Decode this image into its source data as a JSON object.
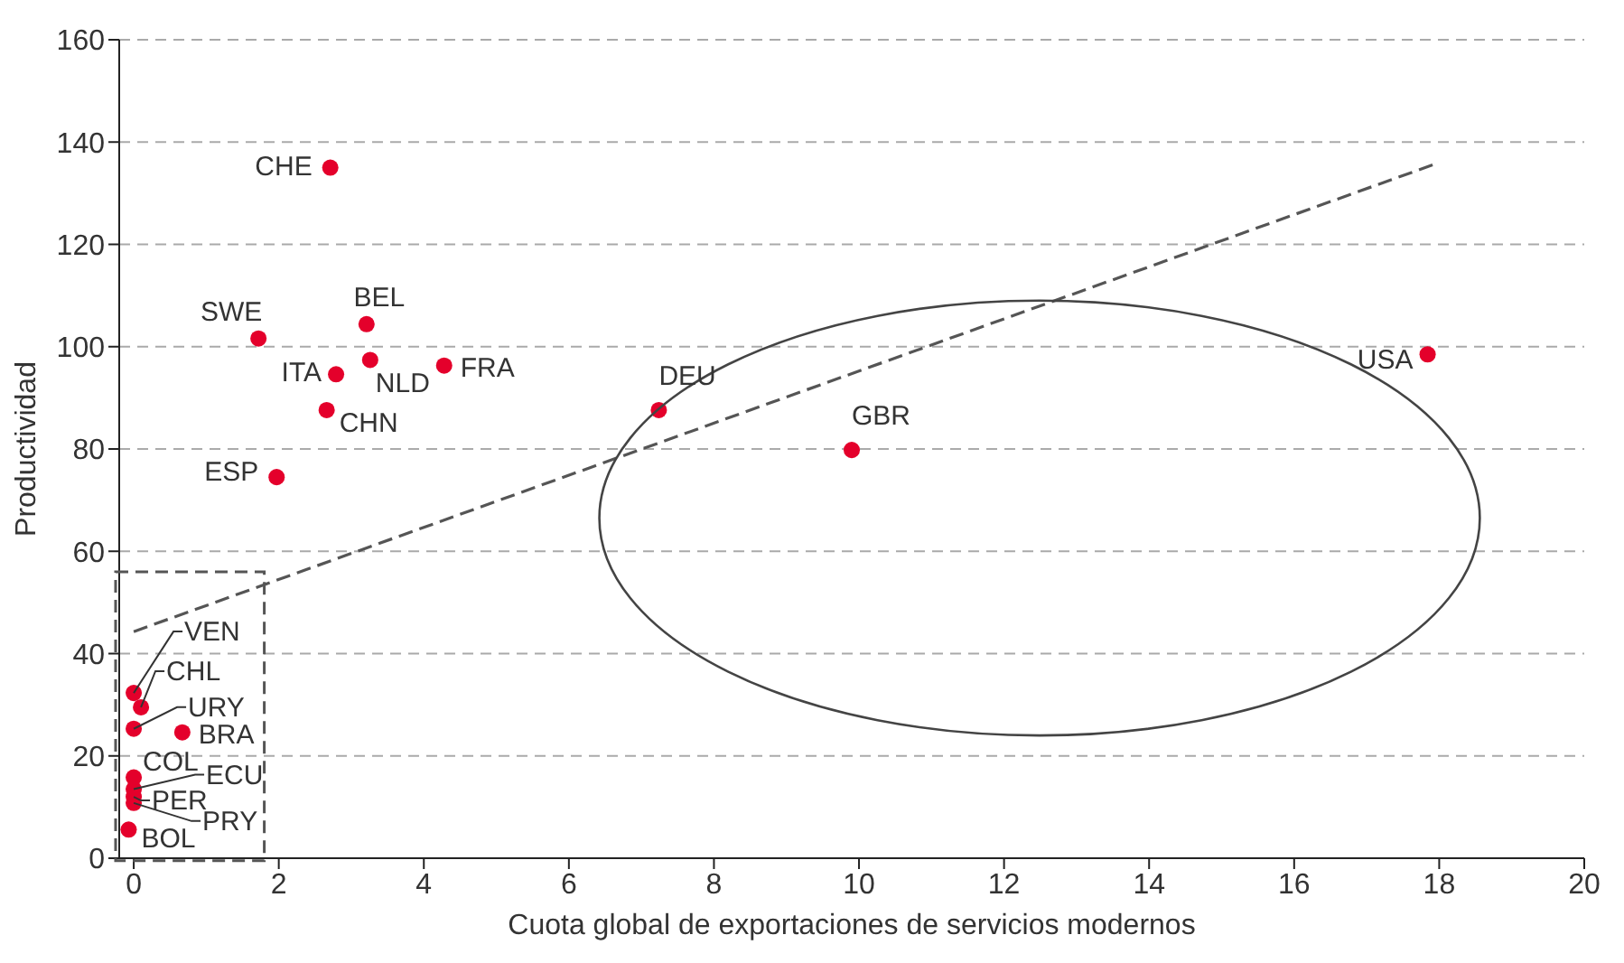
{
  "chart_data": {
    "type": "scatter",
    "xlabel": "Cuota global de exportaciones de servicios modernos",
    "ylabel": "Productividad",
    "xlim": [
      -0.2,
      20
    ],
    "xticks": [
      0,
      2,
      4,
      6,
      8,
      10,
      12,
      14,
      16,
      18,
      20
    ],
    "ylim": [
      0,
      160
    ],
    "yticks": [
      0,
      20,
      40,
      60,
      80,
      100,
      120,
      140,
      160
    ],
    "grid": "y",
    "series": [
      {
        "color": "#e4002b",
        "marker": "circle",
        "x": [
          2.71,
          1.72,
          3.21,
          2.79,
          3.26,
          4.28,
          2.66,
          1.97,
          7.24,
          9.9,
          17.84,
          0,
          0.1,
          0,
          0.67,
          0,
          0,
          0,
          0,
          -0.07
        ],
        "values": [
          135,
          101.6,
          104.4,
          94.6,
          97.4,
          96.3,
          87.6,
          74.5,
          87.6,
          79.8,
          98.5,
          32.3,
          29.5,
          25.3,
          24.6,
          15.8,
          13.5,
          12,
          10.8,
          5.6
        ]
      },
      {
        "type": "line",
        "color": "#555555",
        "line_style": "dashed",
        "marker": "none",
        "x": [
          0,
          18
        ],
        "values": [
          44.3,
          136
        ]
      }
    ],
    "annotations": [
      {
        "text": "CHE",
        "x": 2.71,
        "y": 135
      },
      {
        "text": "SWE",
        "x": 1.72,
        "y": 101.6
      },
      {
        "text": "BEL",
        "x": 3.21,
        "y": 104.4
      },
      {
        "text": "ITA",
        "x": 2.79,
        "y": 94.6
      },
      {
        "text": "NLD",
        "x": 3.26,
        "y": 97.4
      },
      {
        "text": "FRA",
        "x": 4.28,
        "y": 96.3
      },
      {
        "text": "CHN",
        "x": 2.66,
        "y": 87.6
      },
      {
        "text": "ESP",
        "x": 1.97,
        "y": 74.5
      },
      {
        "text": "DEU",
        "x": 7.24,
        "y": 87.6
      },
      {
        "text": "GBR",
        "x": 9.9,
        "y": 79.8
      },
      {
        "text": "USA",
        "x": 17.84,
        "y": 98.5
      },
      {
        "text": "VEN",
        "x": 0,
        "y": 32.3
      },
      {
        "text": "CHL",
        "x": 0.1,
        "y": 29.5
      },
      {
        "text": "URY",
        "x": 0,
        "y": 25.3
      },
      {
        "text": "BRA",
        "x": 0.67,
        "y": 24.6
      },
      {
        "text": "COL",
        "x": 0,
        "y": 15.8
      },
      {
        "text": "ECU",
        "x": 0,
        "y": 13.5
      },
      {
        "text": "PER",
        "x": 0,
        "y": 12
      },
      {
        "text": "PRY",
        "x": 0,
        "y": 10.8
      },
      {
        "text": "BOL",
        "x": -0.07,
        "y": 5.6
      }
    ]
  }
}
